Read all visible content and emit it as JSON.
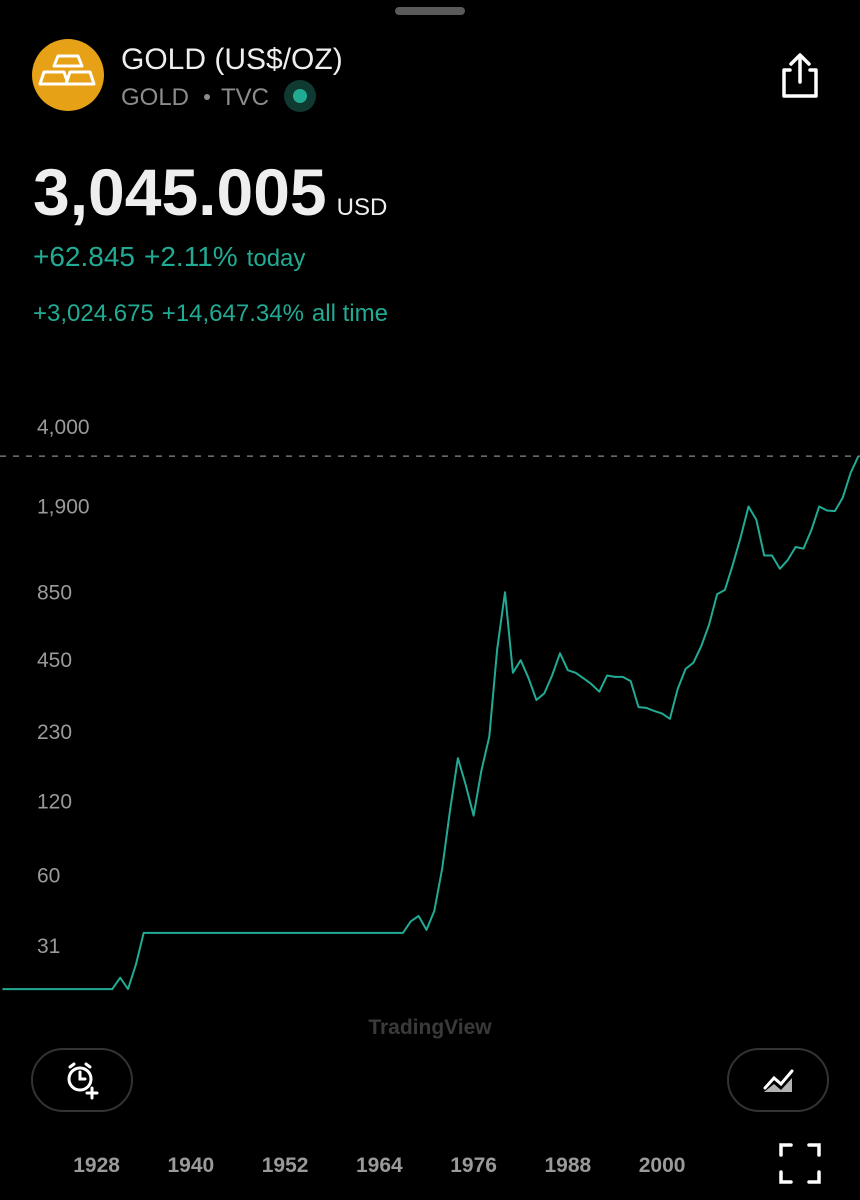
{
  "header": {
    "title": "GOLD (US$/OZ)",
    "symbol": "GOLD",
    "exchange": "TVC"
  },
  "quote": {
    "price": "3,045.005",
    "currency": "USD",
    "change_today": "+62.845",
    "change_today_pct": "+2.11%",
    "today_label": "today",
    "change_all": "+3,024.675",
    "change_all_pct": "+14,647.34%",
    "all_time_label": "all time"
  },
  "chart_data": {
    "type": "line",
    "log_scale": true,
    "grid": false,
    "color": "#22ab94",
    "watermark": "TradingView",
    "x": [
      1916,
      1920,
      1925,
      1930,
      1931,
      1932,
      1933,
      1934,
      1940,
      1950,
      1960,
      1967,
      1968,
      1969,
      1970,
      1971,
      1972,
      1973,
      1974,
      1975,
      1976,
      1977,
      1978,
      1979,
      1980,
      1981,
      1982,
      1983,
      1984,
      1985,
      1986,
      1987,
      1988,
      1989,
      1990,
      1991,
      1992,
      1993,
      1994,
      1995,
      1996,
      1997,
      1998,
      1999,
      2000,
      2001,
      2002,
      2003,
      2004,
      2005,
      2006,
      2007,
      2008,
      2009,
      2010,
      2011,
      2012,
      2013,
      2014,
      2015,
      2016,
      2017,
      2018,
      2019,
      2020,
      2021,
      2022,
      2023,
      2024,
      2025
    ],
    "values": [
      20.67,
      20.67,
      20.67,
      20.67,
      23,
      20.67,
      26,
      35,
      35,
      35,
      35,
      35,
      39,
      41,
      36,
      43,
      64,
      110,
      180,
      140,
      105,
      160,
      220,
      500,
      850,
      400,
      450,
      380,
      310,
      330,
      390,
      480,
      410,
      400,
      380,
      360,
      335,
      390,
      385,
      385,
      370,
      290,
      288,
      280,
      273,
      260,
      345,
      415,
      440,
      515,
      630,
      835,
      870,
      1100,
      1420,
      1900,
      1680,
      1200,
      1200,
      1060,
      1150,
      1300,
      1280,
      1520,
      1900,
      1830,
      1820,
      2060,
      2600,
      3045.005
    ],
    "xlim": [
      1915.7,
      2025.2
    ],
    "ylim": [
      17,
      5150
    ],
    "xticks": [
      1928,
      1940,
      1952,
      1964,
      1976,
      1988,
      2000
    ],
    "yticks": [
      {
        "value": 4000,
        "label": "4,000"
      },
      {
        "value": 1900,
        "label": "1,900"
      },
      850,
      450,
      230,
      120,
      60,
      31
    ]
  }
}
